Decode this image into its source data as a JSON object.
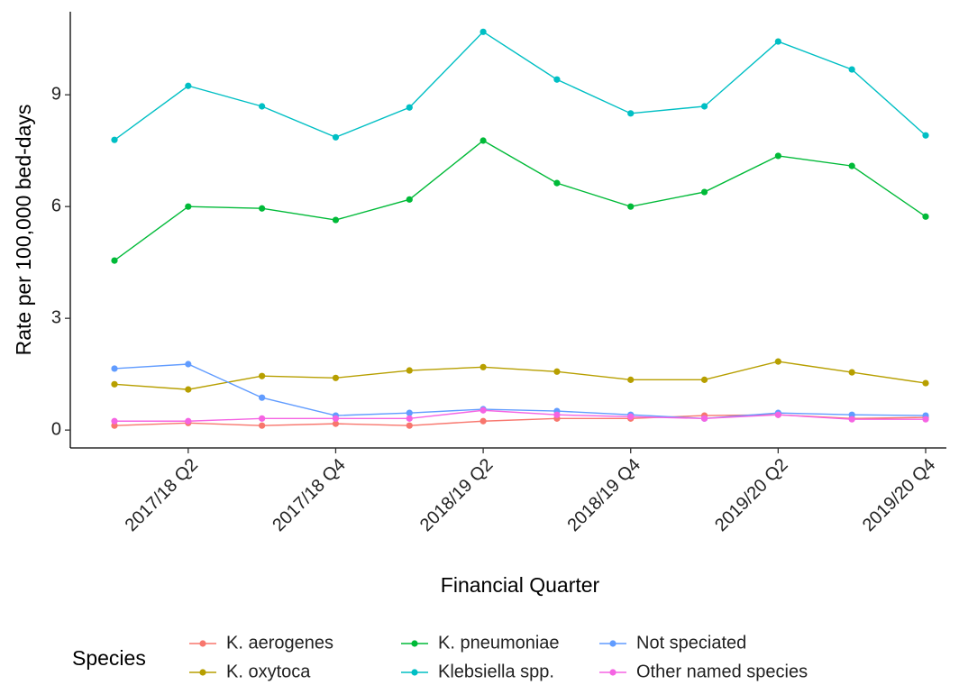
{
  "chart_data": {
    "type": "line",
    "x_label": "Financial Quarter",
    "y_label": "Rate per 100,000 bed-days",
    "legend_title": "Species",
    "legend_position": "bottom",
    "grid": false,
    "categories": [
      null,
      "2017/18 Q2",
      null,
      "2017/18 Q4",
      null,
      "2018/19 Q2",
      null,
      "2018/19 Q4",
      null,
      "2019/20 Q2",
      null,
      "2019/20 Q4"
    ],
    "ylim": [
      -0.48,
      11.23
    ],
    "yticks": [
      0,
      3,
      6,
      9
    ],
    "series": [
      {
        "name": "K. aerogenes",
        "color": "#F8766D",
        "values": [
          0.12,
          0.19,
          0.12,
          0.17,
          0.12,
          0.24,
          0.31,
          0.31,
          0.39,
          0.41,
          0.31,
          0.34
        ]
      },
      {
        "name": "K. oxytoca",
        "color": "#B79F00",
        "values": [
          1.23,
          1.09,
          1.45,
          1.4,
          1.6,
          1.69,
          1.57,
          1.35,
          1.35,
          1.84,
          1.55,
          1.26
        ]
      },
      {
        "name": "K. pneumoniae",
        "color": "#00BA38",
        "values": [
          4.55,
          6.0,
          5.95,
          5.64,
          6.19,
          7.77,
          6.63,
          6.0,
          6.39,
          7.36,
          7.09,
          5.73
        ]
      },
      {
        "name": "Klebsiella spp.",
        "color": "#00BFC4",
        "values": [
          7.79,
          9.24,
          8.69,
          7.86,
          8.66,
          10.69,
          9.41,
          8.5,
          8.69,
          10.43,
          9.68,
          7.91
        ]
      },
      {
        "name": "Not speciated",
        "color": "#619CFF",
        "values": [
          1.65,
          1.77,
          0.87,
          0.39,
          0.46,
          0.56,
          0.51,
          0.41,
          0.31,
          0.46,
          0.41,
          0.39
        ]
      },
      {
        "name": "Other named species",
        "color": "#F564E3",
        "values": [
          0.24,
          0.24,
          0.31,
          0.31,
          0.31,
          0.53,
          0.41,
          0.36,
          0.31,
          0.41,
          0.29,
          0.29
        ]
      }
    ]
  }
}
